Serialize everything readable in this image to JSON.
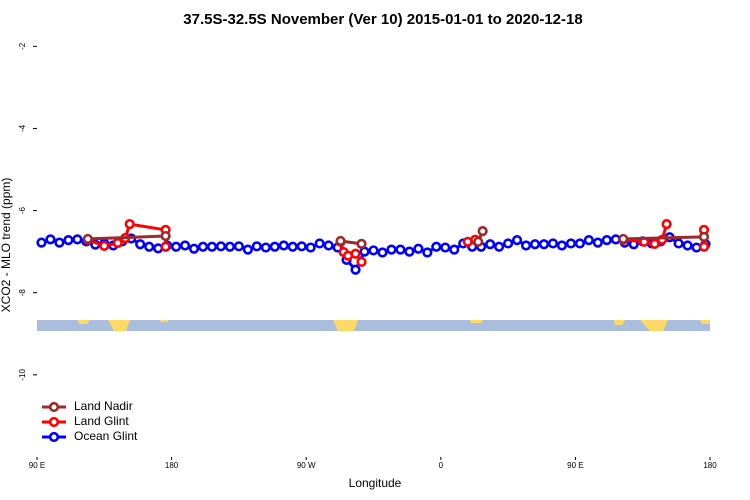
{
  "chart_data": {
    "type": "line",
    "title": "37.5S-32.5S November (Ver 10)   2015-01-01 to 2020-12-18",
    "xlabel": "Longitude",
    "ylabel": "XCO2 - MLO trend (ppm)",
    "xlim": [
      90,
      540
    ],
    "xticks": [
      {
        "value": 90,
        "label": "90 E"
      },
      180,
      {
        "value": 270,
        "label": "90 W"
      },
      {
        "value": 360,
        "label": "0"
      },
      {
        "value": 450,
        "label": "90 E"
      },
      {
        "value": 540,
        "label": "180"
      }
    ],
    "ylim": [
      -12,
      -1.7
    ],
    "yticks": [
      -2,
      -4,
      -6,
      -8,
      -10
    ],
    "legend": "bottom-left",
    "series": [
      {
        "name": "Land Nadir",
        "color": "#9b2a2a",
        "x": [
          124,
          176,
          null,
          293,
          307,
          null,
          385,
          388,
          null,
          482,
          536
        ],
        "values": [
          -6.69,
          -6.62,
          null,
          -6.74,
          -6.81,
          null,
          -6.76,
          -6.5,
          null,
          -6.69,
          -6.64
        ]
      },
      {
        "name": "Land Glint",
        "color": "#ff0000",
        "x": [
          124,
          135,
          144,
          149,
          152,
          176,
          176,
          null,
          293,
          295,
          298,
          303,
          307,
          null,
          378,
          383,
          null,
          482,
          496,
          503,
          508,
          511,
          null,
          536,
          536
        ],
        "values": [
          -6.71,
          -6.86,
          -6.79,
          -6.67,
          -6.33,
          -6.47,
          -6.88,
          null,
          -6.76,
          -7.01,
          -7.1,
          -7.05,
          -7.25,
          null,
          -6.76,
          -6.71,
          null,
          -6.71,
          -6.76,
          -6.81,
          -6.71,
          -6.33,
          null,
          -6.47,
          -6.88
        ]
      },
      {
        "name": "Ocean Glint",
        "color": "#0000ff",
        "x": [
          93,
          99,
          105,
          111,
          117,
          123,
          129,
          135,
          141,
          147,
          153,
          159,
          165,
          171,
          177,
          183,
          189,
          195,
          201,
          207,
          213,
          219,
          225,
          231,
          237,
          243,
          249,
          255,
          261,
          267,
          273,
          279,
          285,
          291,
          297,
          303,
          309,
          315,
          321,
          327,
          333,
          339,
          345,
          351,
          357,
          363,
          369,
          375,
          381,
          387,
          393,
          399,
          405,
          411,
          417,
          423,
          429,
          435,
          441,
          447,
          453,
          459,
          465,
          471,
          477,
          483,
          489,
          495,
          501,
          507,
          513,
          519,
          525,
          531,
          537
        ],
        "values": [
          -6.78,
          -6.7,
          -6.78,
          -6.72,
          -6.7,
          -6.75,
          -6.83,
          -6.8,
          -6.85,
          -6.75,
          -6.68,
          -6.82,
          -6.88,
          -6.92,
          -6.85,
          -6.88,
          -6.85,
          -6.93,
          -6.88,
          -6.88,
          -6.87,
          -6.88,
          -6.87,
          -6.95,
          -6.87,
          -6.9,
          -6.88,
          -6.85,
          -6.88,
          -6.87,
          -6.9,
          -6.8,
          -6.85,
          -6.9,
          -7.2,
          -7.44,
          -7.0,
          -6.97,
          -7.02,
          -6.95,
          -6.95,
          -7.0,
          -6.93,
          -7.02,
          -6.88,
          -6.9,
          -6.95,
          -6.8,
          -6.88,
          -6.88,
          -6.82,
          -6.88,
          -6.8,
          -6.72,
          -6.85,
          -6.82,
          -6.82,
          -6.8,
          -6.85,
          -6.8,
          -6.8,
          -6.72,
          -6.78,
          -6.72,
          -6.7,
          -6.78,
          -6.82,
          -6.75,
          -6.8,
          -6.75,
          -6.65,
          -6.8,
          -6.85,
          -6.9,
          -6.82
        ]
      }
    ]
  }
}
